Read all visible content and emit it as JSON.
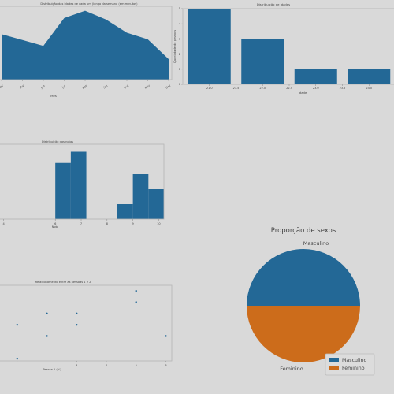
{
  "chart_data": [
    {
      "id": "area",
      "type": "area",
      "title": "Distribuição das idades de cada um (longo da semana (em minutos)",
      "xlabel": "Mês",
      "ylabel": "",
      "categories": [
        "Abr",
        "Mai",
        "Jun",
        "Jul",
        "Ago",
        "Set",
        "Out",
        "Nov",
        "Dez"
      ],
      "values": [
        62,
        54,
        46,
        84,
        94,
        82,
        64,
        55,
        28
      ],
      "ylim": [
        0,
        100
      ],
      "color": "#236896"
    },
    {
      "id": "bars",
      "type": "bar",
      "title": "Distribuição de idades",
      "xlabel": "Idade",
      "ylabel": "Quantidade de pessoas",
      "x": [
        21,
        22,
        23,
        24
      ],
      "values": [
        5,
        3,
        1,
        1
      ],
      "bar_width": 0.8,
      "xlim": [
        20.5,
        24.5
      ],
      "ylim": [
        0,
        5
      ],
      "yticks": [
        0,
        1,
        2,
        3,
        4,
        5
      ],
      "xticks": [
        21.0,
        21.5,
        22.0,
        22.5,
        23.0,
        23.5,
        24.0
      ],
      "xtick_labels": [
        "21.0",
        "21.5",
        "22.0",
        "22.5",
        "23.0",
        "23.5",
        "24.0"
      ],
      "color": "#236896"
    },
    {
      "id": "hist",
      "type": "bar",
      "title": "Distribuição das notas",
      "xlabel": "Nota",
      "ylabel": "",
      "bins": [
        [
          6.0,
          6.6,
          3
        ],
        [
          6.6,
          7.2,
          3.6
        ],
        [
          8.4,
          9.0,
          0.8
        ],
        [
          9.0,
          9.6,
          2.4
        ],
        [
          9.6,
          10.2,
          1.6
        ]
      ],
      "xlim": [
        3.8,
        10.2
      ],
      "ylim": [
        0,
        4
      ],
      "xticks": [
        4,
        6,
        7,
        8,
        9,
        10
      ],
      "color": "#236896"
    },
    {
      "id": "scatter",
      "type": "scatter",
      "title": "Relacionamento entre as pessoas 1 e 2",
      "xlabel": "Pessoa 1 (%)",
      "ylabel": "",
      "x": [
        1,
        2,
        3,
        5,
        5,
        3,
        2,
        6,
        1
      ],
      "y": [
        5,
        6,
        6,
        8,
        7,
        5,
        4,
        4,
        2
      ],
      "xlim": [
        0.9,
        6.2
      ],
      "ylim": [
        1.8,
        8.5
      ],
      "xticks": [
        1,
        3,
        4,
        5,
        6
      ],
      "color": "#236896"
    },
    {
      "id": "pie",
      "type": "pie",
      "title": "Proporção de sexos",
      "labels": [
        "Masculino",
        "Feminino"
      ],
      "values": [
        50,
        50
      ],
      "colors": [
        "#236896",
        "#cc6c1b"
      ],
      "legend": "bottom-right"
    }
  ]
}
